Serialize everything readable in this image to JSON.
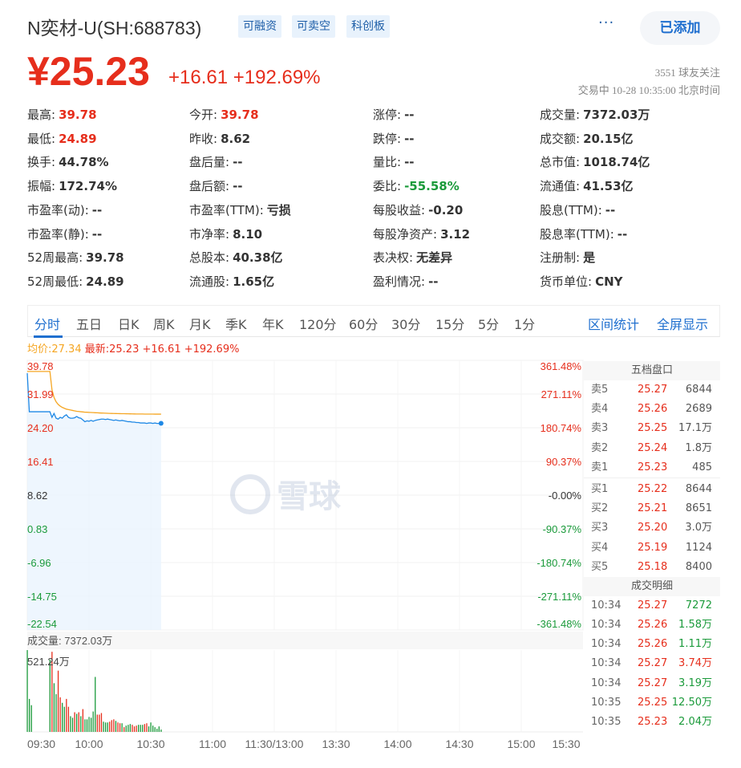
{
  "header": {
    "title": "N奕材-U(SH:688783)",
    "tags": [
      "可融资",
      "可卖空",
      "科创板"
    ],
    "more": "···",
    "added_button": "已添加"
  },
  "quote": {
    "price": "¥25.23",
    "change": "+16.61",
    "change_pct": "+192.69%",
    "followers": "3551 球友关注",
    "status": "交易中 10-28 10:35:00 北京时间"
  },
  "stats": [
    [
      {
        "label": "最高:",
        "value": "39.78",
        "color": "red"
      },
      {
        "label": "今开:",
        "value": "39.78",
        "color": "red"
      },
      {
        "label": "涨停:",
        "value": "--"
      },
      {
        "label": "成交量:",
        "value": "7372.03万"
      }
    ],
    [
      {
        "label": "最低:",
        "value": "24.89",
        "color": "red"
      },
      {
        "label": "昨收:",
        "value": "8.62"
      },
      {
        "label": "跌停:",
        "value": "--"
      },
      {
        "label": "成交额:",
        "value": "20.15亿"
      }
    ],
    [
      {
        "label": "换手:",
        "value": "44.78%"
      },
      {
        "label": "盘后量:",
        "value": "--"
      },
      {
        "label": "量比:",
        "value": "--"
      },
      {
        "label": "总市值:",
        "value": "1018.74亿"
      }
    ],
    [
      {
        "label": "振幅:",
        "value": "172.74%"
      },
      {
        "label": "盘后额:",
        "value": "--"
      },
      {
        "label": "委比:",
        "value": "-55.58%",
        "color": "green"
      },
      {
        "label": "流通值:",
        "value": "41.53亿"
      }
    ],
    [
      {
        "label": "市盈率(动):",
        "value": "--"
      },
      {
        "label": "市盈率(TTM):",
        "value": "亏损"
      },
      {
        "label": "每股收益:",
        "value": "-0.20"
      },
      {
        "label": "股息(TTM):",
        "value": "--"
      }
    ],
    [
      {
        "label": "市盈率(静):",
        "value": "--"
      },
      {
        "label": "市净率:",
        "value": "8.10"
      },
      {
        "label": "每股净资产:",
        "value": "3.12"
      },
      {
        "label": "股息率(TTM):",
        "value": "--"
      }
    ],
    [
      {
        "label": "52周最高:",
        "value": "39.78"
      },
      {
        "label": "总股本:",
        "value": "40.38亿"
      },
      {
        "label": "表决权:",
        "value": "无差异"
      },
      {
        "label": "注册制:",
        "value": "是"
      }
    ],
    [
      {
        "label": "52周最低:",
        "value": "24.89"
      },
      {
        "label": "流通股:",
        "value": "1.65亿"
      },
      {
        "label": "盈利情况:",
        "value": "--"
      },
      {
        "label": "货币单位:",
        "value": "CNY"
      }
    ]
  ],
  "tabs": [
    "分时",
    "五日",
    "日K",
    "周K",
    "月K",
    "季K",
    "年K",
    "120分",
    "60分",
    "30分",
    "15分",
    "5分",
    "1分"
  ],
  "active_tab": "分时",
  "right_tabs": [
    "区间统计",
    "全屏显示"
  ],
  "legend": {
    "avg": "均价:27.34",
    "latest": "最新:25.23 +16.61 +192.69%"
  },
  "watermark": "雪球",
  "colors": {
    "up": "#e62e1c",
    "down": "#1a9a3a",
    "price_line": "#1e88e5",
    "avg_line": "#f5a623",
    "accent": "#1f6fcf"
  },
  "chart_data": {
    "type": "line",
    "start_time": "09:30",
    "ylim": [
      -22.54,
      39.78
    ],
    "prev_close": 8.62,
    "y_ticks": [
      "39.78",
      "31.99",
      "24.20",
      "16.41",
      "8.62",
      "0.83",
      "-6.96",
      "-14.75",
      "-22.54"
    ],
    "pct_ticks": [
      "361.48%",
      "271.11%",
      "180.74%",
      "90.37%",
      "-0.00%",
      "-90.37%",
      "-180.74%",
      "-271.11%",
      "-361.48%"
    ],
    "x_ticks": [
      "09:30",
      "10:00",
      "10:30",
      "11:00",
      "11:30/13:00",
      "13:30",
      "14:00",
      "14:30",
      "15:00",
      "15:30"
    ],
    "series": [
      {
        "key": "price",
        "values": [
          36.8,
          27.9,
          27.9,
          27.9,
          27.9,
          27.9,
          27.9,
          27.9,
          27.9,
          27.9,
          27.9,
          27.9,
          26.6,
          27.5,
          26.4,
          26.2,
          26.6,
          26.4,
          26.9,
          27.2,
          26.6,
          26.4,
          26.4,
          26.5,
          26.8,
          26.5,
          26.4,
          26.0,
          25.6,
          25.8,
          25.7,
          25.9,
          25.7,
          25.9,
          26.0,
          26.1,
          26.2,
          26.2,
          26.1,
          26.2,
          26.1,
          26.0,
          25.9,
          26.0,
          25.9,
          25.8,
          25.9,
          25.8,
          25.7,
          25.6,
          25.6,
          25.5,
          25.5,
          25.4,
          25.4,
          25.3,
          25.3,
          25.3,
          25.2,
          25.3,
          25.3,
          25.2,
          25.3,
          25.2,
          25.2,
          25.23
        ]
      },
      {
        "key": "avg",
        "values": [
          37.2,
          37.2,
          37.2,
          37.2,
          37.2,
          37.2,
          37.2,
          37.2,
          37.2,
          37.2,
          37.2,
          37.2,
          33.0,
          31.2,
          30.2,
          29.6,
          29.2,
          28.9,
          28.7,
          28.5,
          28.4,
          28.3,
          28.2,
          28.1,
          28.0,
          27.95,
          27.9,
          27.85,
          27.8,
          27.78,
          27.75,
          27.72,
          27.7,
          27.67,
          27.65,
          27.62,
          27.6,
          27.58,
          27.56,
          27.54,
          27.52,
          27.5,
          27.49,
          27.48,
          27.47,
          27.46,
          27.45,
          27.44,
          27.43,
          27.42,
          27.41,
          27.4,
          27.39,
          27.38,
          27.38,
          27.37,
          27.37,
          27.36,
          27.36,
          27.35,
          27.35,
          27.35,
          27.34,
          27.34,
          27.34,
          27.34
        ]
      }
    ],
    "volume": {
      "title": "成交量: 7372.03万",
      "max_label": "521.24万",
      "max": 521.24,
      "values": [
        521,
        210,
        170,
        0,
        0,
        0,
        0,
        0,
        0,
        0,
        0,
        460,
        510,
        310,
        240,
        390,
        220,
        185,
        160,
        210,
        160,
        100,
        90,
        125,
        115,
        125,
        100,
        145,
        80,
        80,
        95,
        90,
        130,
        350,
        110,
        110,
        120,
        65,
        60,
        60,
        65,
        75,
        80,
        70,
        60,
        55,
        55,
        30,
        40,
        45,
        50,
        45,
        35,
        40,
        45,
        45,
        45,
        50,
        55,
        35,
        60,
        40,
        30,
        20,
        35,
        15
      ],
      "directions": [
        "down",
        "down",
        "down",
        "down",
        "down",
        "down",
        "down",
        "down",
        "down",
        "down",
        "down",
        "down",
        "up",
        "down",
        "down",
        "up",
        "up",
        "down",
        "down",
        "up",
        "up",
        "down",
        "down",
        "up",
        "down",
        "up",
        "down",
        "up",
        "down",
        "down",
        "down",
        "down",
        "down",
        "down",
        "up",
        "up",
        "up",
        "down",
        "down",
        "down",
        "up",
        "up",
        "up",
        "down",
        "up",
        "up",
        "down",
        "up",
        "down",
        "down",
        "down",
        "up",
        "up",
        "up",
        "down",
        "down",
        "down",
        "up",
        "up",
        "down",
        "down",
        "down",
        "down",
        "down",
        "down",
        "down"
      ]
    }
  },
  "order_book": {
    "title": "五档盘口",
    "asks": [
      {
        "label": "卖5",
        "price": "25.27",
        "vol": "6844"
      },
      {
        "label": "卖4",
        "price": "25.26",
        "vol": "2689"
      },
      {
        "label": "卖3",
        "price": "25.25",
        "vol": "17.1万"
      },
      {
        "label": "卖2",
        "price": "25.24",
        "vol": "1.8万"
      },
      {
        "label": "卖1",
        "price": "25.23",
        "vol": "485"
      }
    ],
    "bids": [
      {
        "label": "买1",
        "price": "25.22",
        "vol": "8644"
      },
      {
        "label": "买2",
        "price": "25.21",
        "vol": "8651"
      },
      {
        "label": "买3",
        "price": "25.20",
        "vol": "3.0万"
      },
      {
        "label": "买4",
        "price": "25.19",
        "vol": "1124"
      },
      {
        "label": "买5",
        "price": "25.18",
        "vol": "8400"
      }
    ]
  },
  "trades": {
    "title": "成交明细",
    "rows": [
      {
        "time": "10:34",
        "price": "25.27",
        "vol": "7272",
        "dir": "down"
      },
      {
        "time": "10:34",
        "price": "25.26",
        "vol": "1.58万",
        "dir": "down"
      },
      {
        "time": "10:34",
        "price": "25.26",
        "vol": "1.11万",
        "dir": "down"
      },
      {
        "time": "10:34",
        "price": "25.27",
        "vol": "3.74万",
        "dir": "up"
      },
      {
        "time": "10:34",
        "price": "25.27",
        "vol": "3.19万",
        "dir": "down"
      },
      {
        "time": "10:35",
        "price": "25.25",
        "vol": "12.50万",
        "dir": "down"
      },
      {
        "time": "10:35",
        "price": "25.23",
        "vol": "2.04万",
        "dir": "down"
      }
    ]
  }
}
